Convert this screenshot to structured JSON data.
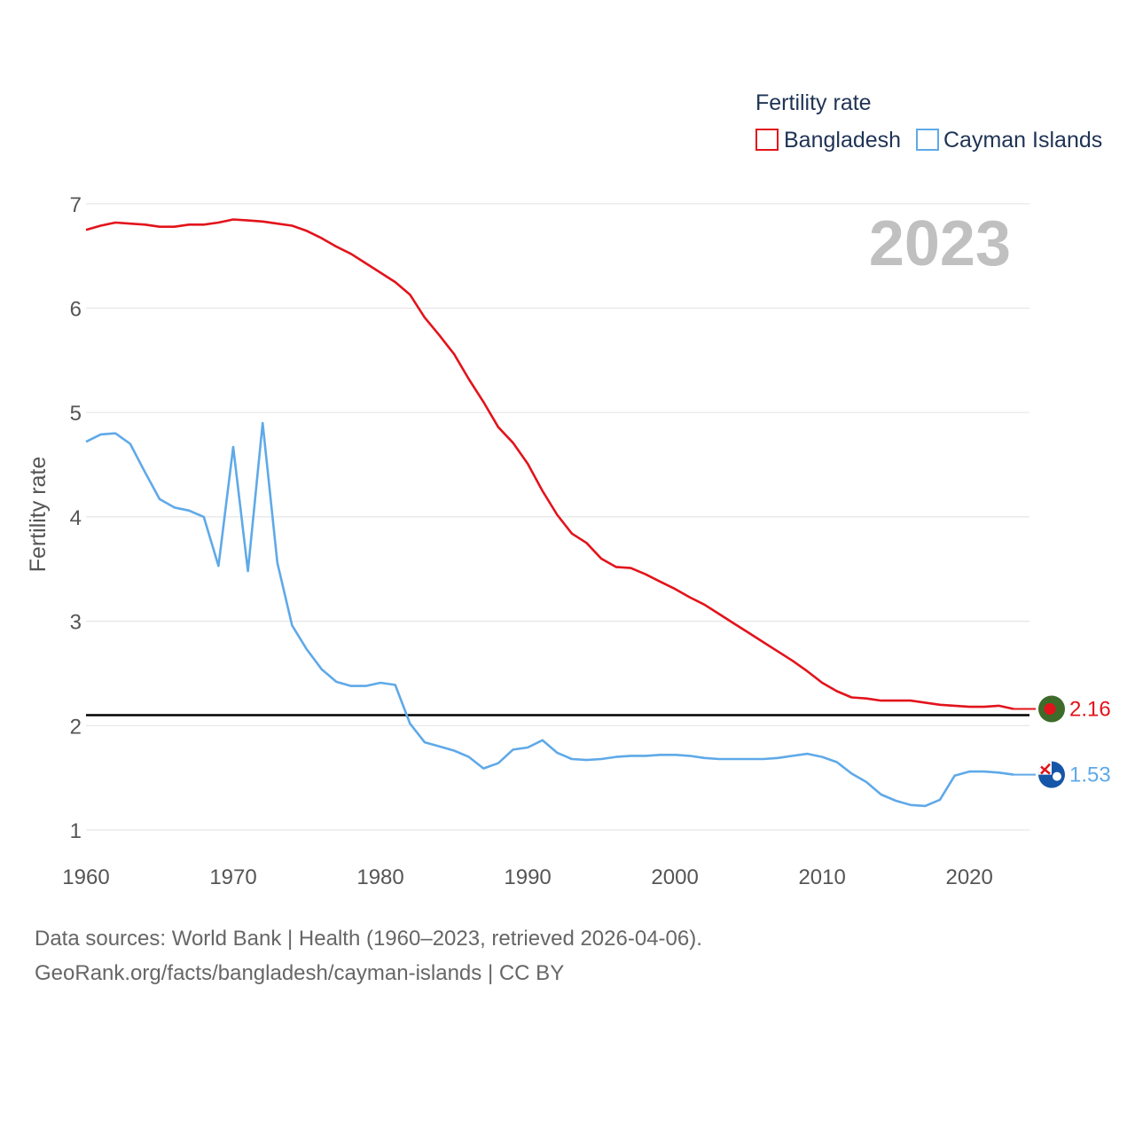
{
  "chart_data": {
    "type": "line",
    "title": "Fertility rate",
    "ylabel": "Fertility rate",
    "xlabel": "",
    "year_label": "2023",
    "xlim": [
      1960,
      2023
    ],
    "ylim": [
      0.8,
      7.2
    ],
    "x_ticks": [
      1960,
      1970,
      1980,
      1990,
      2000,
      2010,
      2020
    ],
    "y_ticks": [
      1,
      2,
      3,
      4,
      5,
      6,
      7
    ],
    "reference_line": 2.1,
    "legend": {
      "title": "Fertility rate",
      "position": "top-right"
    },
    "x": [
      1960,
      1961,
      1962,
      1963,
      1964,
      1965,
      1966,
      1967,
      1968,
      1969,
      1970,
      1971,
      1972,
      1973,
      1974,
      1975,
      1976,
      1977,
      1978,
      1979,
      1980,
      1981,
      1982,
      1983,
      1984,
      1985,
      1986,
      1987,
      1988,
      1989,
      1990,
      1991,
      1992,
      1993,
      1994,
      1995,
      1996,
      1997,
      1998,
      1999,
      2000,
      2001,
      2002,
      2003,
      2004,
      2005,
      2006,
      2007,
      2008,
      2009,
      2010,
      2011,
      2012,
      2013,
      2014,
      2015,
      2016,
      2017,
      2018,
      2019,
      2020,
      2021,
      2022,
      2023
    ],
    "series": [
      {
        "name": "Bangladesh",
        "color": "#e3131b",
        "end_label": "2.16",
        "values": [
          6.75,
          6.79,
          6.82,
          6.81,
          6.8,
          6.78,
          6.78,
          6.8,
          6.8,
          6.82,
          6.85,
          6.84,
          6.83,
          6.81,
          6.79,
          6.74,
          6.67,
          6.59,
          6.52,
          6.43,
          6.34,
          6.25,
          6.13,
          5.91,
          5.74,
          5.56,
          5.32,
          5.1,
          4.86,
          4.71,
          4.51,
          4.25,
          4.02,
          3.84,
          3.75,
          3.6,
          3.52,
          3.51,
          3.45,
          3.38,
          3.31,
          3.23,
          3.16,
          3.07,
          2.98,
          2.89,
          2.8,
          2.71,
          2.62,
          2.52,
          2.41,
          2.33,
          2.27,
          2.26,
          2.24,
          2.24,
          2.24,
          2.22,
          2.2,
          2.19,
          2.18,
          2.18,
          2.19,
          2.16
        ]
      },
      {
        "name": "Cayman Islands",
        "color": "#5fa9e8",
        "end_label": "1.53",
        "values": [
          4.72,
          4.79,
          4.8,
          4.7,
          4.43,
          4.17,
          4.09,
          4.06,
          4.0,
          3.53,
          4.67,
          3.48,
          4.9,
          3.56,
          2.96,
          2.73,
          2.54,
          2.42,
          2.38,
          2.38,
          2.41,
          2.39,
          2.02,
          1.84,
          1.8,
          1.76,
          1.7,
          1.59,
          1.64,
          1.77,
          1.79,
          1.86,
          1.74,
          1.68,
          1.67,
          1.68,
          1.7,
          1.71,
          1.71,
          1.72,
          1.72,
          1.71,
          1.69,
          1.68,
          1.68,
          1.68,
          1.68,
          1.69,
          1.71,
          1.73,
          1.7,
          1.65,
          1.54,
          1.46,
          1.34,
          1.28,
          1.24,
          1.23,
          1.29,
          1.52,
          1.56,
          1.56,
          1.55,
          1.53
        ]
      }
    ]
  },
  "footer": {
    "line1": "Data sources: World Bank | Health (1960–2023, retrieved 2026-04-06).",
    "line2": "GeoRank.org/facts/bangladesh/cayman-islands | CC BY"
  },
  "colors": {
    "gridline": "#e6e6e6",
    "reference_line": "#000000",
    "bangladesh_flag_green": "#3e6b2a",
    "bangladesh_flag_red": "#e3131b",
    "cayman_flag_blue": "#1556a8"
  }
}
